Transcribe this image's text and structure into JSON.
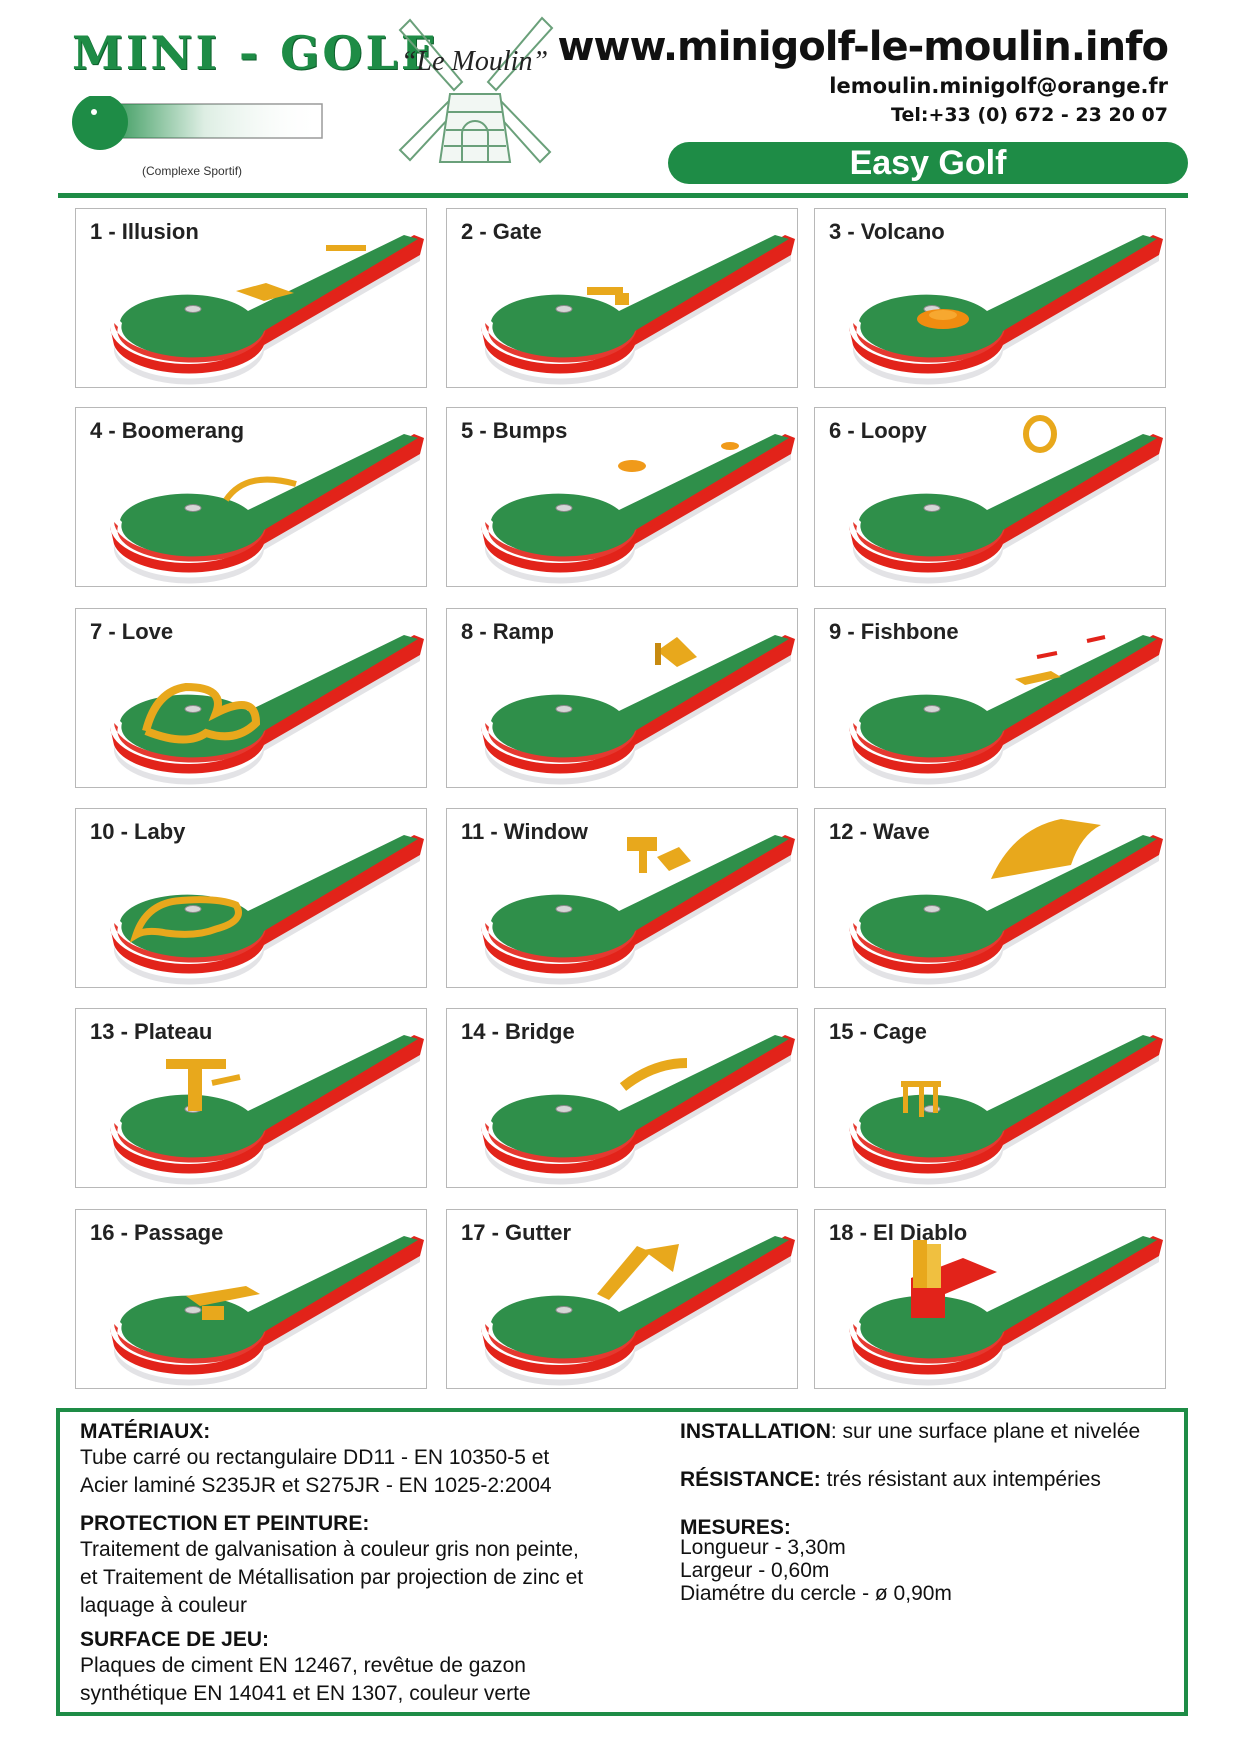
{
  "header": {
    "brand_title": "MINI - GOLF",
    "brand_subtitle": "(Complexe Sportif)",
    "logo_name": "“Le Moulin”",
    "website": "www.minigolf-le-moulin.info",
    "email": "lemoulin.minigolf@orange.fr",
    "phone": "Tel:+33 (0) 672 - 23 20 07",
    "product_line": "Easy Golf"
  },
  "colors": {
    "brand_green": "#1e8c46",
    "turf_green": "#2f8f4a",
    "rail_red": "#e2231a",
    "obstacle_yellow": "#e8a81c",
    "base_grey": "#e3e3e6"
  },
  "holes": [
    {
      "label": "1 - Illusion",
      "obstacle": "illusion"
    },
    {
      "label": "2 - Gate",
      "obstacle": "gate"
    },
    {
      "label": "3 - Volcano",
      "obstacle": "volcano"
    },
    {
      "label": "4 - Boomerang",
      "obstacle": "boomerang"
    },
    {
      "label": "5 - Bumps",
      "obstacle": "bumps"
    },
    {
      "label": "6 - Loopy",
      "obstacle": "loopy"
    },
    {
      "label": "7 - Love",
      "obstacle": "love"
    },
    {
      "label": "8 - Ramp",
      "obstacle": "ramp"
    },
    {
      "label": "9 - Fishbone",
      "obstacle": "fishbone"
    },
    {
      "label": "10 - Laby",
      "obstacle": "laby"
    },
    {
      "label": "11 - Window",
      "obstacle": "window"
    },
    {
      "label": "12 - Wave",
      "obstacle": "wave"
    },
    {
      "label": "13 - Plateau",
      "obstacle": "plateau"
    },
    {
      "label": "14 - Bridge",
      "obstacle": "bridge"
    },
    {
      "label": "15 - Cage",
      "obstacle": "cage"
    },
    {
      "label": "16 - Passage",
      "obstacle": "passage"
    },
    {
      "label": "17 - Gutter",
      "obstacle": "gutter"
    },
    {
      "label": "18 - El Diablo",
      "obstacle": "diablo"
    }
  ],
  "specs": {
    "materiaux_head": "MATÉRIAUX:",
    "materiaux_line1": "Tube carré ou rectangulaire DD11 - EN 10350-5 et",
    "materiaux_line2": "Acier laminé S235JR et S275JR - EN 1025-2:2004",
    "protection_head": "PROTECTION ET PEINTURE:",
    "protection_line1": "Traitement de galvanisation à couleur gris non peinte,",
    "protection_line2": "et Traitement  de Métallisation par projection de zinc et",
    "protection_line3": "laquage à couleur",
    "surface_head": "SURFACE DE JEU:",
    "surface_line1": "Plaques de ciment EN 12467, revêtue de gazon",
    "surface_line2": "synthétique EN 14041 et EN 1307, couleur verte",
    "installation_head": "INSTALLATION",
    "installation_text": ": sur une surface plane et nivelée",
    "resistance_head": "RÉSISTANCE:",
    "resistance_text": " trés résistant aux intempéries",
    "mesures_head": "MESURES:",
    "mesures_line1": "Longueur - 3,30m",
    "mesures_line2": "Largeur - 0,60m",
    "mesures_line3": "Diamétre du cercle - ø 0,90m"
  }
}
